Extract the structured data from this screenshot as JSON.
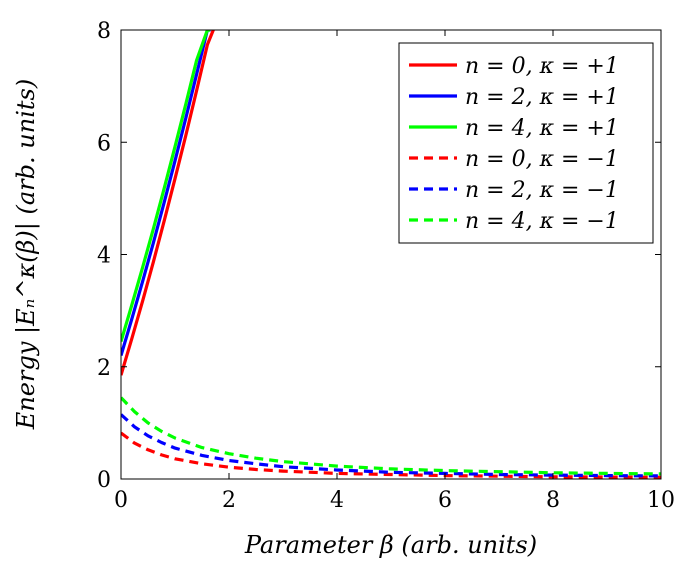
{
  "chart_data": {
    "type": "line",
    "xlabel": "Parameter β (arb. units)",
    "ylabel": "Energy |Eₙ^κ(β)| (arb. units)",
    "xlim": [
      0,
      10
    ],
    "ylim": [
      0,
      8
    ],
    "x_ticks": [
      "0",
      "2",
      "4",
      "6",
      "8",
      "10"
    ],
    "y_ticks": [
      "0",
      "2",
      "4",
      "6",
      "8"
    ],
    "grid": false,
    "legend_position": "top-right",
    "series": [
      {
        "name": "n = 0, κ = +1",
        "color": "#ff0000",
        "dash": "solid",
        "x": [
          0,
          0.2,
          0.4,
          0.6,
          0.8,
          1.0,
          1.2,
          1.4,
          1.6,
          1.71
        ],
        "y": [
          1.85,
          2.5,
          3.17,
          3.87,
          4.6,
          5.35,
          6.12,
          6.92,
          7.74,
          8.0
        ]
      },
      {
        "name": "n = 2, κ = +1",
        "color": "#0000ff",
        "dash": "solid",
        "x": [
          0,
          0.2,
          0.4,
          0.6,
          0.8,
          1.0,
          1.2,
          1.4,
          1.6,
          1.66
        ],
        "y": [
          2.2,
          2.85,
          3.52,
          4.21,
          4.93,
          5.67,
          6.43,
          7.21,
          8.0,
          8.0
        ]
      },
      {
        "name": "n = 4, κ = +1",
        "color": "#00ff00",
        "dash": "solid",
        "x": [
          0,
          0.2,
          0.4,
          0.6,
          0.8,
          1.0,
          1.2,
          1.4,
          1.6,
          1.65
        ],
        "y": [
          2.45,
          3.1,
          3.77,
          4.46,
          5.18,
          5.92,
          6.68,
          7.46,
          8.0,
          8.0
        ]
      },
      {
        "name": "n = 0, κ = −1",
        "color": "#ff0000",
        "dash": "dashed",
        "x": [
          0,
          0.25,
          0.5,
          0.75,
          1,
          1.5,
          2,
          2.5,
          3,
          4,
          5,
          6,
          7,
          8,
          9,
          10
        ],
        "y": [
          0.82,
          0.64,
          0.52,
          0.43,
          0.36,
          0.27,
          0.21,
          0.17,
          0.14,
          0.1,
          0.08,
          0.06,
          0.05,
          0.04,
          0.035,
          0.03
        ]
      },
      {
        "name": "n = 2, κ = −1",
        "color": "#0000ff",
        "dash": "dashed",
        "x": [
          0,
          0.25,
          0.5,
          0.75,
          1,
          1.5,
          2,
          2.5,
          3,
          4,
          5,
          6,
          7,
          8,
          9,
          10
        ],
        "y": [
          1.15,
          0.93,
          0.77,
          0.65,
          0.55,
          0.42,
          0.33,
          0.27,
          0.22,
          0.16,
          0.12,
          0.1,
          0.08,
          0.07,
          0.06,
          0.055
        ]
      },
      {
        "name": "n = 4, κ = −1",
        "color": "#00ff00",
        "dash": "dashed",
        "x": [
          0,
          0.25,
          0.5,
          0.75,
          1,
          1.5,
          2,
          2.5,
          3,
          4,
          5,
          6,
          7,
          8,
          9,
          10
        ],
        "y": [
          1.45,
          1.2,
          1.0,
          0.85,
          0.73,
          0.56,
          0.45,
          0.37,
          0.31,
          0.23,
          0.18,
          0.15,
          0.13,
          0.11,
          0.1,
          0.09
        ]
      }
    ]
  }
}
